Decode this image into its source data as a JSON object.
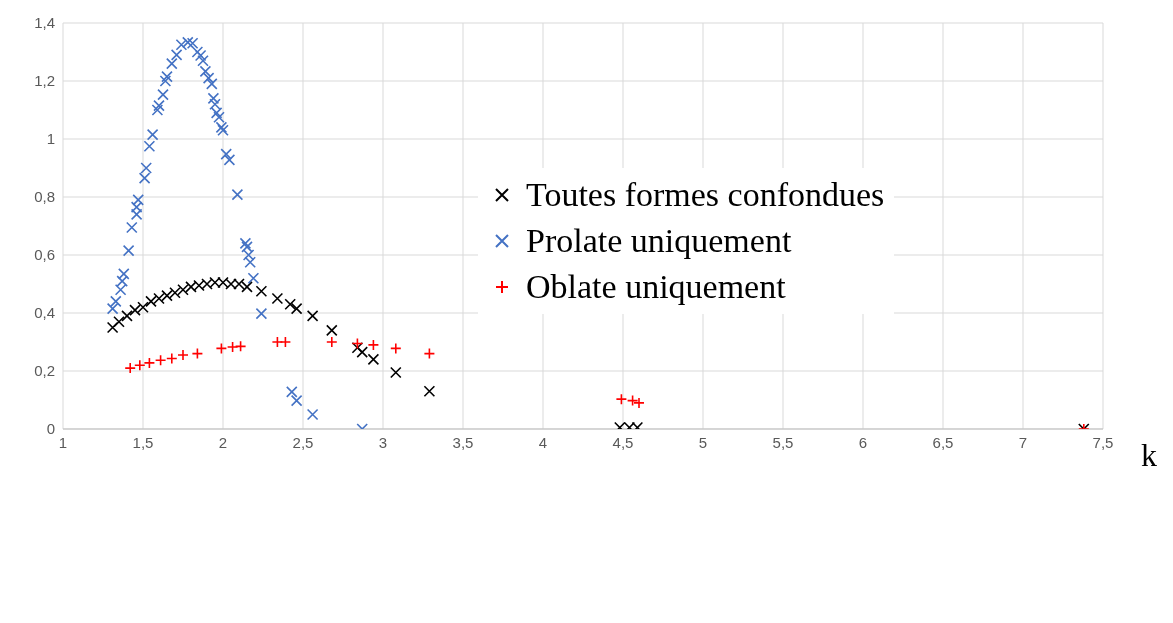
{
  "chart_data": {
    "type": "scatter",
    "xlabel": "k",
    "xlim": [
      1,
      7.5
    ],
    "xticks": [
      1,
      {
        "value": 1.5,
        "label": "1,5"
      },
      2,
      {
        "value": 2.5,
        "label": "2,5"
      },
      3,
      {
        "value": 3.5,
        "label": "3,5"
      },
      4,
      {
        "value": 4.5,
        "label": "4,5"
      },
      5,
      {
        "value": 5.5,
        "label": "5,5"
      },
      6,
      {
        "value": 6.5,
        "label": "6,5"
      },
      7,
      {
        "value": 7.5,
        "label": "7,5"
      }
    ],
    "ylim": [
      0,
      1.4
    ],
    "yticks": [
      0,
      {
        "value": 0.2,
        "label": "0,2"
      },
      {
        "value": 0.4,
        "label": "0,4"
      },
      {
        "value": 0.6,
        "label": "0,6"
      },
      {
        "value": 0.8,
        "label": "0,8"
      },
      1,
      {
        "value": 1.2,
        "label": "1,2"
      },
      {
        "value": 1.4,
        "label": "1,4"
      }
    ],
    "grid": true,
    "legend": "right",
    "series": [
      {
        "name": "Toutes formes confondues",
        "color": "#000000",
        "marker": "cross",
        "x": [
          1.31,
          1.35,
          1.4,
          1.45,
          1.5,
          1.55,
          1.6,
          1.65,
          1.7,
          1.75,
          1.8,
          1.85,
          1.9,
          1.95,
          2.0,
          2.05,
          2.1,
          2.15,
          2.24,
          2.34,
          2.42,
          2.46,
          2.56,
          2.68,
          2.84,
          2.87,
          2.94,
          3.08,
          3.29,
          4.48,
          4.54,
          4.59,
          7.38
        ],
        "values": [
          0.35,
          0.37,
          0.39,
          0.41,
          0.42,
          0.44,
          0.45,
          0.46,
          0.47,
          0.48,
          0.49,
          0.495,
          0.5,
          0.505,
          0.505,
          0.5,
          0.5,
          0.49,
          0.475,
          0.45,
          0.43,
          0.415,
          0.39,
          0.34,
          0.28,
          0.265,
          0.24,
          0.195,
          0.13,
          0.005,
          0.005,
          0.005,
          0
        ]
      },
      {
        "name": "Prolate uniquement",
        "color": "#4472c4",
        "marker": "cross",
        "x": [
          1.31,
          1.33,
          1.36,
          1.37,
          1.38,
          1.41,
          1.43,
          1.46,
          1.46,
          1.47,
          1.51,
          1.52,
          1.54,
          1.56,
          1.59,
          1.6,
          1.625,
          1.64,
          1.65,
          1.68,
          1.71,
          1.74,
          1.78,
          1.81,
          1.84,
          1.86,
          1.875,
          1.89,
          1.91,
          1.93,
          1.94,
          1.95,
          1.96,
          1.975,
          1.99,
          2.0,
          2.02,
          2.04,
          2.09,
          2.14,
          2.15,
          2.16,
          2.17,
          2.19,
          2.24,
          2.43,
          2.46,
          2.56,
          2.87
        ],
        "values": [
          0.415,
          0.44,
          0.48,
          0.51,
          0.535,
          0.615,
          0.695,
          0.74,
          0.765,
          0.79,
          0.865,
          0.9,
          0.975,
          1.015,
          1.1,
          1.115,
          1.153,
          1.2,
          1.215,
          1.26,
          1.29,
          1.325,
          1.333,
          1.33,
          1.3,
          1.288,
          1.27,
          1.233,
          1.21,
          1.19,
          1.14,
          1.12,
          1.09,
          1.075,
          1.04,
          1.03,
          0.948,
          0.928,
          0.808,
          0.64,
          0.628,
          0.6,
          0.575,
          0.52,
          0.398,
          0.128,
          0.098,
          0.05,
          0
        ]
      },
      {
        "name": "Oblate uniquement",
        "color": "#ff0000",
        "marker": "plus",
        "x": [
          1.42,
          1.48,
          1.54,
          1.61,
          1.68,
          1.75,
          1.84,
          1.99,
          2.06,
          2.11,
          2.34,
          2.39,
          2.68,
          2.84,
          2.94,
          3.08,
          3.29,
          4.49,
          4.56,
          4.6,
          7.38
        ],
        "values": [
          0.21,
          0.22,
          0.228,
          0.237,
          0.243,
          0.255,
          0.26,
          0.278,
          0.283,
          0.285,
          0.3,
          0.3,
          0.3,
          0.295,
          0.29,
          0.278,
          0.26,
          0.103,
          0.098,
          0.09,
          0
        ]
      }
    ]
  }
}
